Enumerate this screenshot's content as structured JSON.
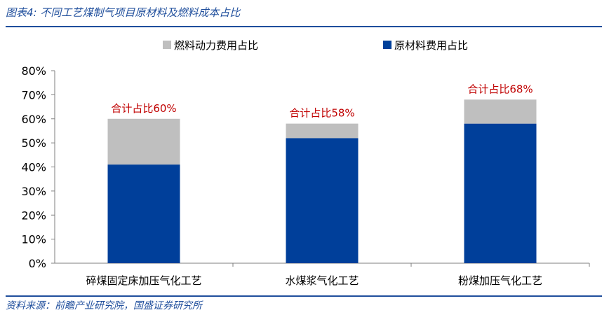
{
  "figure_title": "图表4:  不同工艺煤制气项目原材料及燃料成本占比",
  "source": "资料来源：前瞻产业研究院，国盛证券研究所",
  "colors": {
    "fuel": "#bfbfbf",
    "raw": "#003f9a",
    "accent": "#1f4e9c",
    "annotation": "#c00000"
  },
  "chart_data": {
    "type": "bar",
    "stacked": true,
    "categories": [
      "碎煤固定床加压气化工艺",
      "水煤浆气化工艺",
      "粉煤加压气化工艺"
    ],
    "series": [
      {
        "name": "原材料费用占比",
        "values": [
          41,
          52,
          58
        ]
      },
      {
        "name": "燃料动力费用占比",
        "values": [
          19,
          6,
          10
        ]
      }
    ],
    "totals_labels": [
      "合计占比60%",
      "合计占比58%",
      "合计占比68%"
    ],
    "yticks": [
      "0%",
      "10%",
      "20%",
      "30%",
      "40%",
      "50%",
      "60%",
      "70%",
      "80%"
    ],
    "ylim": [
      0,
      80
    ],
    "legend_order": [
      "燃料动力费用占比",
      "原材料费用占比"
    ],
    "legend_position": "top",
    "grid": false
  }
}
